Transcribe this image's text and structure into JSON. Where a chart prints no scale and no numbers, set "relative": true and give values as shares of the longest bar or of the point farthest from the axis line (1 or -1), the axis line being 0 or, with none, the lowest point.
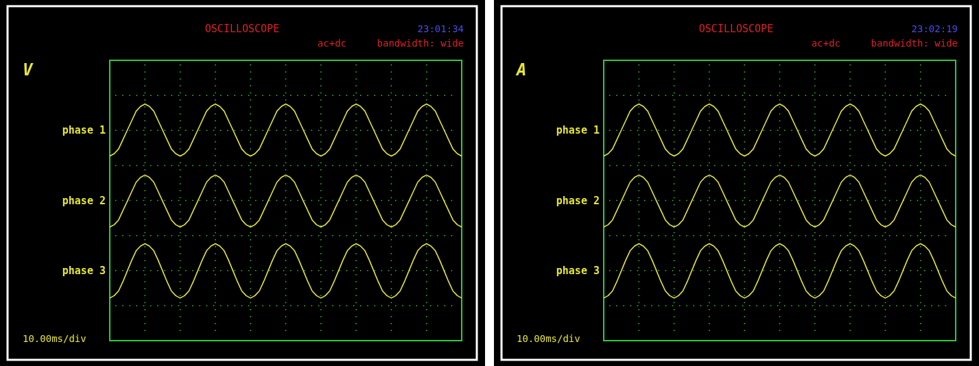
{
  "chart_data": [
    {
      "type": "line",
      "title": "OSCILLOSCOPE",
      "ylabel": "V",
      "xlabel": "10.00ms/div",
      "annotations": [
        "23:01:34",
        "ac+dc",
        "bandwidth: wide"
      ],
      "relative": true,
      "grid": true,
      "legend": false,
      "categories": [
        null,
        null,
        null,
        null,
        null,
        null,
        null,
        null,
        null,
        null,
        null,
        null,
        null,
        null,
        null,
        null,
        null,
        null,
        null,
        null,
        null,
        null,
        null,
        null,
        null,
        null,
        null,
        null,
        null,
        null,
        null,
        null,
        null,
        null,
        null,
        null,
        null,
        null,
        null,
        null,
        null,
        null,
        null,
        null,
        null,
        null,
        null,
        null,
        null,
        null,
        null,
        null,
        null,
        null,
        null,
        null,
        null,
        null,
        null,
        null,
        null,
        null,
        null,
        null,
        null,
        null,
        null,
        null,
        null,
        null,
        null,
        null,
        null,
        null,
        null,
        null,
        null,
        null,
        null,
        null,
        null
      ],
      "series": [
        {
          "name": "phase 1",
          "color": "#e6e632",
          "values": [
            0.78,
            0.79,
            0.81,
            0.85,
            0.89,
            0.93,
            0.97,
            0.99,
            1,
            0.99,
            0.97,
            0.93,
            0.89,
            0.85,
            0.81,
            0.79,
            0.78,
            0.79,
            0.81,
            0.85,
            0.89,
            0.93,
            0.97,
            0.99,
            1,
            0.99,
            0.97,
            0.93,
            0.89,
            0.85,
            0.81,
            0.79,
            0.78,
            0.79,
            0.81,
            0.85,
            0.89,
            0.93,
            0.97,
            0.99,
            1,
            0.99,
            0.97,
            0.93,
            0.89,
            0.85,
            0.81,
            0.79,
            0.78,
            0.79,
            0.81,
            0.85,
            0.89,
            0.93,
            0.97,
            0.99,
            1,
            0.99,
            0.97,
            0.93,
            0.89,
            0.85,
            0.81,
            0.79,
            0.78,
            0.79,
            0.81,
            0.85,
            0.89,
            0.93,
            0.97,
            0.99,
            1,
            0.99,
            0.97,
            0.93,
            0.89,
            0.85,
            0.81,
            0.79,
            0.78
          ]
        },
        {
          "name": "phase 2",
          "color": "#e6e632",
          "values": [
            0.48,
            0.49,
            0.51,
            0.55,
            0.59,
            0.63,
            0.67,
            0.69,
            0.7,
            0.69,
            0.67,
            0.63,
            0.59,
            0.55,
            0.51,
            0.49,
            0.48,
            0.49,
            0.51,
            0.55,
            0.59,
            0.63,
            0.67,
            0.69,
            0.7,
            0.69,
            0.67,
            0.63,
            0.59,
            0.55,
            0.51,
            0.49,
            0.48,
            0.49,
            0.51,
            0.55,
            0.59,
            0.63,
            0.67,
            0.69,
            0.7,
            0.69,
            0.67,
            0.63,
            0.59,
            0.55,
            0.51,
            0.49,
            0.48,
            0.49,
            0.51,
            0.55,
            0.59,
            0.63,
            0.67,
            0.69,
            0.7,
            0.69,
            0.67,
            0.63,
            0.59,
            0.55,
            0.51,
            0.49,
            0.48,
            0.49,
            0.51,
            0.55,
            0.59,
            0.63,
            0.67,
            0.69,
            0.7,
            0.69,
            0.67,
            0.63,
            0.59,
            0.55,
            0.51,
            0.49,
            0.48
          ]
        },
        {
          "name": "phase 3",
          "color": "#e6e632",
          "values": [
            0.18,
            0.19,
            0.21,
            0.25,
            0.295,
            0.34,
            0.38,
            0.4,
            0.41,
            0.4,
            0.38,
            0.34,
            0.295,
            0.25,
            0.21,
            0.19,
            0.18,
            0.19,
            0.21,
            0.25,
            0.295,
            0.34,
            0.38,
            0.4,
            0.41,
            0.4,
            0.38,
            0.34,
            0.295,
            0.25,
            0.21,
            0.19,
            0.18,
            0.19,
            0.21,
            0.25,
            0.295,
            0.34,
            0.38,
            0.4,
            0.41,
            0.4,
            0.38,
            0.34,
            0.295,
            0.25,
            0.21,
            0.19,
            0.18,
            0.19,
            0.21,
            0.25,
            0.295,
            0.34,
            0.38,
            0.4,
            0.41,
            0.4,
            0.38,
            0.34,
            0.295,
            0.25,
            0.21,
            0.19,
            0.18,
            0.19,
            0.21,
            0.25,
            0.295,
            0.34,
            0.38,
            0.4,
            0.41,
            0.4,
            0.38,
            0.34,
            0.295,
            0.25,
            0.21,
            0.19,
            0.18
          ]
        }
      ]
    },
    {
      "type": "line",
      "title": "OSCILLOSCOPE",
      "ylabel": "A",
      "xlabel": "10.00ms/div",
      "annotations": [
        "23:02:19",
        "ac+dc",
        "bandwidth: wide"
      ],
      "relative": true,
      "grid": true,
      "legend": false,
      "categories": [
        null,
        null,
        null,
        null,
        null,
        null,
        null,
        null,
        null,
        null,
        null,
        null,
        null,
        null,
        null,
        null,
        null,
        null,
        null,
        null,
        null,
        null,
        null,
        null,
        null,
        null,
        null,
        null,
        null,
        null,
        null,
        null,
        null,
        null,
        null,
        null,
        null,
        null,
        null,
        null,
        null,
        null,
        null,
        null,
        null,
        null,
        null,
        null,
        null,
        null,
        null,
        null,
        null,
        null,
        null,
        null,
        null,
        null,
        null,
        null,
        null,
        null,
        null,
        null,
        null,
        null,
        null,
        null,
        null,
        null,
        null,
        null,
        null,
        null,
        null,
        null,
        null,
        null,
        null,
        null,
        null
      ],
      "series": [
        {
          "name": "phase 1",
          "color": "#e6e632",
          "values": [
            0.78,
            0.79,
            0.81,
            0.85,
            0.89,
            0.93,
            0.97,
            0.99,
            1,
            0.99,
            0.97,
            0.93,
            0.89,
            0.85,
            0.81,
            0.79,
            0.78,
            0.79,
            0.81,
            0.85,
            0.89,
            0.93,
            0.97,
            0.99,
            1,
            0.99,
            0.97,
            0.93,
            0.89,
            0.85,
            0.81,
            0.79,
            0.78,
            0.79,
            0.81,
            0.85,
            0.89,
            0.93,
            0.97,
            0.99,
            1,
            0.99,
            0.97,
            0.93,
            0.89,
            0.85,
            0.81,
            0.79,
            0.78,
            0.79,
            0.81,
            0.85,
            0.89,
            0.93,
            0.97,
            0.99,
            1,
            0.99,
            0.97,
            0.93,
            0.89,
            0.85,
            0.81,
            0.79,
            0.78,
            0.79,
            0.81,
            0.85,
            0.89,
            0.93,
            0.97,
            0.99,
            1,
            0.99,
            0.97,
            0.93,
            0.89,
            0.85,
            0.81,
            0.79,
            0.78
          ]
        },
        {
          "name": "phase 2",
          "color": "#e6e632",
          "values": [
            0.48,
            0.49,
            0.51,
            0.55,
            0.59,
            0.63,
            0.67,
            0.69,
            0.7,
            0.69,
            0.67,
            0.63,
            0.59,
            0.55,
            0.51,
            0.49,
            0.48,
            0.49,
            0.51,
            0.55,
            0.59,
            0.63,
            0.67,
            0.69,
            0.7,
            0.69,
            0.67,
            0.63,
            0.59,
            0.55,
            0.51,
            0.49,
            0.48,
            0.49,
            0.51,
            0.55,
            0.59,
            0.63,
            0.67,
            0.69,
            0.7,
            0.69,
            0.67,
            0.63,
            0.59,
            0.55,
            0.51,
            0.49,
            0.48,
            0.49,
            0.51,
            0.55,
            0.59,
            0.63,
            0.67,
            0.69,
            0.7,
            0.69,
            0.67,
            0.63,
            0.59,
            0.55,
            0.51,
            0.49,
            0.48,
            0.49,
            0.51,
            0.55,
            0.59,
            0.63,
            0.67,
            0.69,
            0.7,
            0.69,
            0.67,
            0.63,
            0.59,
            0.55,
            0.51,
            0.49,
            0.48
          ]
        },
        {
          "name": "phase 3",
          "color": "#e6e632",
          "values": [
            0.18,
            0.19,
            0.21,
            0.25,
            0.295,
            0.34,
            0.38,
            0.4,
            0.41,
            0.4,
            0.38,
            0.34,
            0.295,
            0.25,
            0.21,
            0.19,
            0.18,
            0.19,
            0.21,
            0.25,
            0.295,
            0.34,
            0.38,
            0.4,
            0.41,
            0.4,
            0.38,
            0.34,
            0.295,
            0.25,
            0.21,
            0.19,
            0.18,
            0.19,
            0.21,
            0.25,
            0.295,
            0.34,
            0.38,
            0.4,
            0.41,
            0.4,
            0.38,
            0.34,
            0.295,
            0.25,
            0.21,
            0.19,
            0.18,
            0.19,
            0.21,
            0.25,
            0.295,
            0.34,
            0.38,
            0.4,
            0.41,
            0.4,
            0.38,
            0.34,
            0.295,
            0.25,
            0.21,
            0.19,
            0.18,
            0.19,
            0.21,
            0.25,
            0.295,
            0.34,
            0.38,
            0.4,
            0.41,
            0.4,
            0.38,
            0.34,
            0.295,
            0.25,
            0.21,
            0.19,
            0.18
          ]
        }
      ]
    }
  ]
}
